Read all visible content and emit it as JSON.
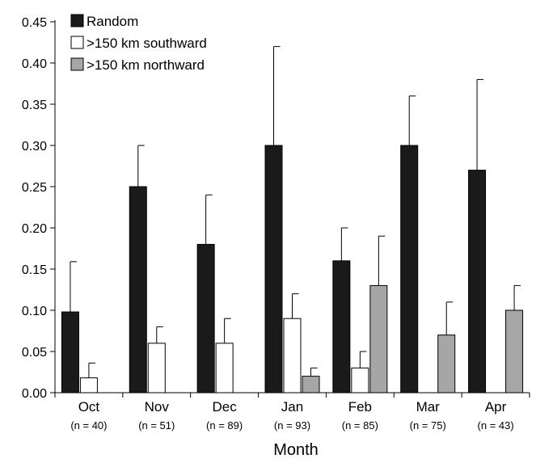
{
  "chart_data": {
    "type": "bar",
    "xlabel": "Month",
    "ylabel": "",
    "ylim": [
      0,
      0.45
    ],
    "yticks": [
      "0.00",
      "0.05",
      "0.10",
      "0.15",
      "0.20",
      "0.25",
      "0.30",
      "0.35",
      "0.40",
      "0.45"
    ],
    "categories": [
      "Oct",
      "Nov",
      "Dec",
      "Jan",
      "Feb",
      "Mar",
      "Apr"
    ],
    "sample_sizes": [
      "(n = 40)",
      "(n = 51)",
      "(n = 89)",
      "(n = 93)",
      "(n = 85)",
      "(n = 75)",
      "(n = 43)"
    ],
    "series": [
      {
        "name": "Random",
        "color": "#1a1a1a",
        "values": [
          0.098,
          0.25,
          0.18,
          0.3,
          0.16,
          0.3,
          0.27
        ],
        "error_upper": [
          0.159,
          0.3,
          0.24,
          0.42,
          0.2,
          0.36,
          0.38
        ]
      },
      {
        "name": ">150 km southward",
        "color": "#ffffff",
        "values": [
          0.018,
          0.06,
          0.06,
          0.09,
          0.03,
          null,
          null
        ],
        "error_upper": [
          0.036,
          0.08,
          0.09,
          0.12,
          0.05,
          null,
          null
        ]
      },
      {
        "name": ">150 km northward",
        "color": "#a6a6a6",
        "values": [
          null,
          null,
          null,
          0.02,
          0.13,
          0.07,
          0.1
        ],
        "error_upper": [
          null,
          null,
          null,
          0.03,
          0.19,
          0.11,
          0.13
        ]
      }
    ],
    "legend_position": "top-left",
    "grid": false
  }
}
